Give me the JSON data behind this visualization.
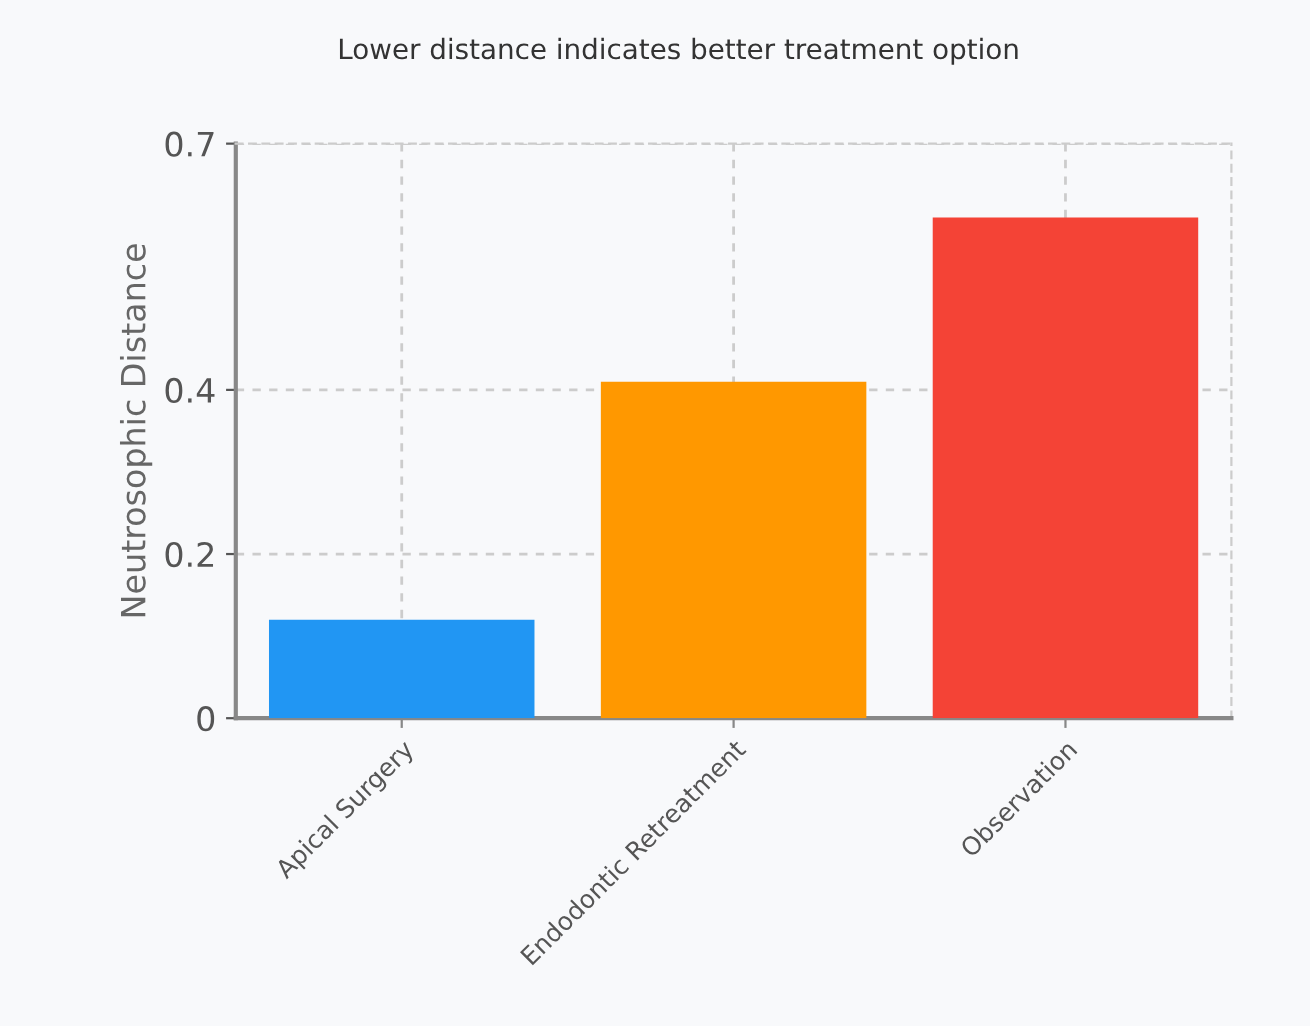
{
  "chart_data": {
    "type": "bar",
    "title": "Lower distance indicates better treatment option",
    "ylabel": "Neutrosophic Distance",
    "categories": [
      "Apical Surgery",
      "Endodontic Retreatment",
      "Observation"
    ],
    "values": [
      0.12,
      0.41,
      0.61
    ],
    "colors": [
      "#2196f3",
      "#ff9800",
      "#f44336"
    ],
    "ylim": [
      0,
      0.7
    ],
    "yticks": [
      0,
      0.2,
      0.4,
      0.7
    ],
    "grid": true
  }
}
